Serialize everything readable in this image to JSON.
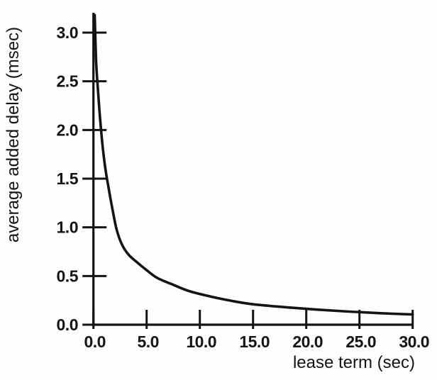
{
  "figure": {
    "background": "#fefefe",
    "ink_color": "#141414"
  },
  "chart_data": {
    "type": "line",
    "title": "",
    "xlabel": "lease term (sec)",
    "ylabel": "average added delay (msec)",
    "xlim": [
      0,
      30
    ],
    "ylim": [
      0,
      3.2
    ],
    "grid": false,
    "legend": "none",
    "x_ticks": [
      0,
      5,
      10,
      15,
      20,
      25,
      30
    ],
    "x_tick_labels": [
      "0.0",
      "5.0",
      "10.0",
      "15.0",
      "20.0",
      "25.0",
      "30.0"
    ],
    "y_ticks": [
      0,
      0.5,
      1,
      1.5,
      2,
      2.5,
      3
    ],
    "y_tick_labels": [
      "0.0",
      "0.5",
      "1.0",
      "1.5",
      "2.0",
      "2.5",
      "3.0"
    ],
    "series": [
      {
        "name": "average added delay",
        "x": [
          0.12,
          0.25,
          0.4,
          0.6,
          0.85,
          1.1,
          1.4,
          1.8,
          2.2,
          2.7,
          3.3,
          4.0,
          5.0,
          6.0,
          7.5,
          9.0,
          11,
          13,
          15,
          18,
          21,
          24,
          27,
          30
        ],
        "y": [
          3.18,
          2.72,
          2.45,
          2.15,
          1.85,
          1.62,
          1.42,
          1.18,
          0.97,
          0.82,
          0.72,
          0.65,
          0.56,
          0.48,
          0.41,
          0.345,
          0.29,
          0.245,
          0.21,
          0.18,
          0.155,
          0.135,
          0.118,
          0.105
        ]
      }
    ]
  }
}
